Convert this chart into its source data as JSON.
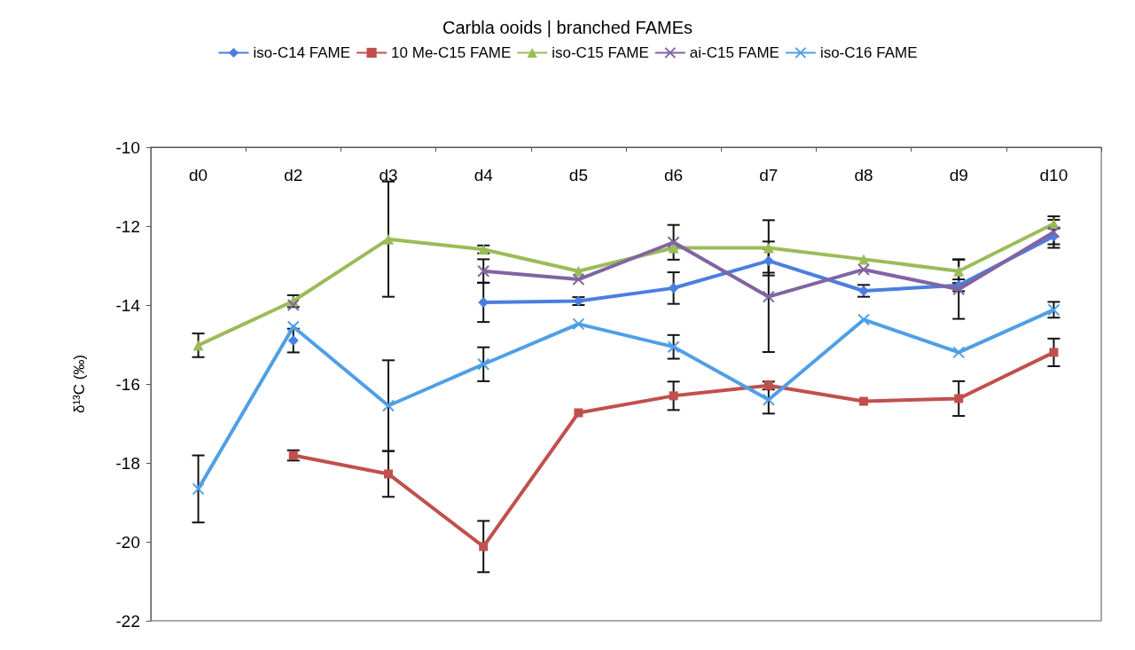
{
  "chart_data": {
    "type": "line",
    "title": "Carbla ooids | branched FAMEs",
    "ylabel": "δ¹³C (‰)",
    "categories": [
      "d0",
      "d2",
      "d3",
      "d4",
      "d5",
      "d6",
      "d7",
      "d8",
      "d9",
      "d10"
    ],
    "ylim": [
      -22,
      -10
    ],
    "yticks": [
      -22,
      -20,
      -18,
      -16,
      -14,
      -12,
      -10
    ],
    "grid": false,
    "legend": "top",
    "series": [
      {
        "name": "iso-C14 FAME",
        "color": "#4a7fe0",
        "marker": "diamond",
        "values": [
          null,
          -14.9,
          null,
          -13.93,
          -13.9,
          -13.57,
          -12.88,
          -13.64,
          -13.5,
          -12.26
        ],
        "errors": [
          null,
          0.3,
          null,
          0.5,
          0.1,
          0.4,
          0.3,
          0.15,
          0.15,
          0.2
        ]
      },
      {
        "name": "10 Me-C15 FAME",
        "color": "#c0504d",
        "marker": "square",
        "values": [
          null,
          -17.81,
          -18.28,
          -20.12,
          -16.73,
          -16.3,
          -16.04,
          -16.44,
          -16.37,
          -15.2
        ],
        "errors": [
          null,
          0.13,
          0.58,
          0.65,
          null,
          0.36,
          0.1,
          null,
          0.44,
          0.35
        ]
      },
      {
        "name": "iso-C15 FAME",
        "color": "#9bbb59",
        "marker": "triangle",
        "values": [
          -15.02,
          -13.9,
          -12.33,
          -12.59,
          -13.14,
          -12.55,
          -12.55,
          -12.84,
          -13.14,
          -11.94
        ],
        "errors": [
          0.3,
          0.15,
          1.46,
          0.1,
          null,
          null,
          0.7,
          null,
          0.3,
          0.1
        ]
      },
      {
        "name": "ai-C15 FAME",
        "color": "#8064a2",
        "marker": "cross",
        "values": [
          null,
          -14.0,
          null,
          -13.14,
          -13.35,
          -12.41,
          -13.79,
          -13.1,
          -13.6,
          -12.15
        ],
        "errors": [
          null,
          null,
          null,
          0.3,
          null,
          0.44,
          1.4,
          null,
          0.75,
          0.4
        ]
      },
      {
        "name": "iso-C16 FAME",
        "color": "#4f9fe6",
        "marker": "cross",
        "values": [
          -18.66,
          -14.55,
          -16.55,
          -15.5,
          -14.48,
          -15.06,
          -16.4,
          -14.37,
          -15.2,
          -14.12
        ],
        "errors": [
          0.85,
          null,
          1.15,
          0.43,
          null,
          0.3,
          0.35,
          null,
          null,
          0.2
        ]
      }
    ]
  }
}
